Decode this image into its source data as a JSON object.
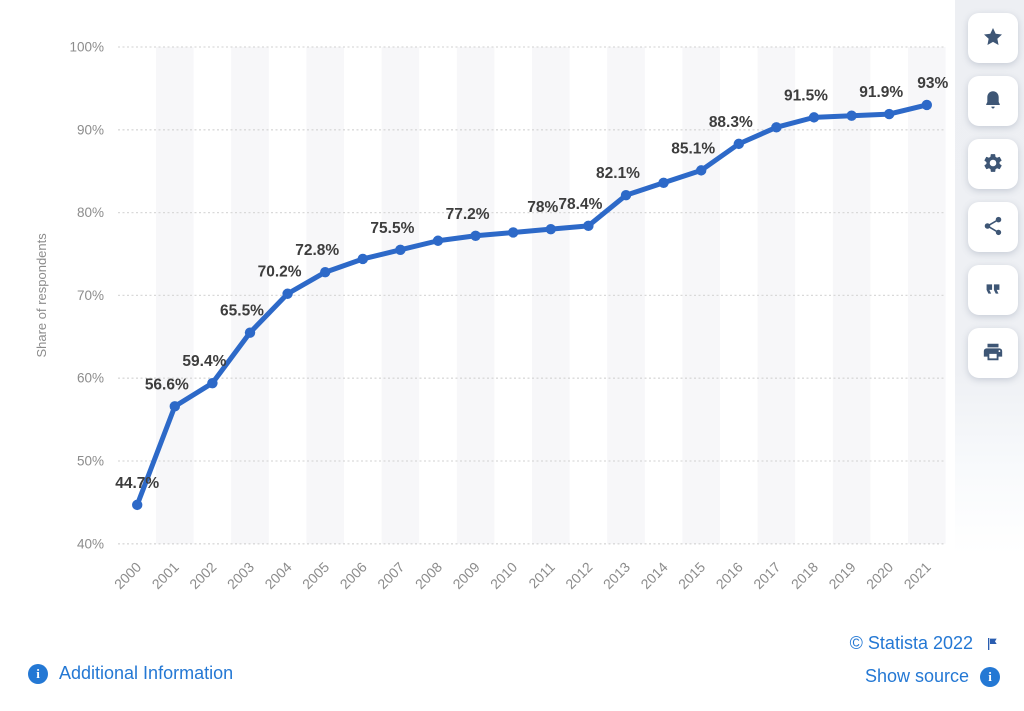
{
  "chart_data": {
    "type": "line",
    "title": "",
    "xlabel": "",
    "ylabel": "Share of respondents",
    "categories": [
      "2000",
      "2001",
      "2002",
      "2003",
      "2004",
      "2005",
      "2006",
      "2007",
      "2008",
      "2009",
      "2010",
      "2011",
      "2012",
      "2013",
      "2014",
      "2015",
      "2016",
      "2017",
      "2018",
      "2019",
      "2020",
      "2021"
    ],
    "series": [
      {
        "name": "Share of respondents",
        "values": [
          44.7,
          56.6,
          59.4,
          65.5,
          70.2,
          72.8,
          74.4,
          75.5,
          76.6,
          77.2,
          77.6,
          78.0,
          78.4,
          82.1,
          83.6,
          85.1,
          88.3,
          90.3,
          91.5,
          91.7,
          91.9,
          93.0
        ]
      }
    ],
    "point_labels": [
      "44.7%",
      "56.6%",
      "59.4%",
      "65.5%",
      "70.2%",
      "72.8%",
      null,
      "75.5%",
      null,
      "77.2%",
      null,
      "78%",
      "78.4%",
      "82.1%",
      null,
      "85.1%",
      "88.3%",
      null,
      "91.5%",
      null,
      "91.9%",
      "93%"
    ],
    "ylim": [
      40,
      100
    ],
    "ytick_labels": [
      "100%",
      "90%",
      "80%",
      "70%",
      "60%",
      "50%",
      "40%"
    ],
    "grid": "horizontal-dotted",
    "legend": "none",
    "colors": {
      "line": "#2d69c8",
      "band": "#f7f7f9",
      "grid": "#d9d9d9",
      "tick": "#8c8c8c",
      "point_label": "#3d3d3d"
    }
  },
  "toolbar": {
    "buttons": [
      {
        "name": "favorite",
        "icon": "star-icon"
      },
      {
        "name": "notifications",
        "icon": "bell-icon"
      },
      {
        "name": "settings",
        "icon": "gear-icon"
      },
      {
        "name": "share",
        "icon": "share-icon"
      },
      {
        "name": "cite",
        "icon": "quote-icon"
      },
      {
        "name": "print",
        "icon": "printer-icon"
      }
    ]
  },
  "footer": {
    "additional_information": "Additional Information",
    "copyright": "© Statista 2022",
    "show_source": "Show source",
    "link_color": "#2478d4",
    "flag_color": "#2a5db0"
  }
}
